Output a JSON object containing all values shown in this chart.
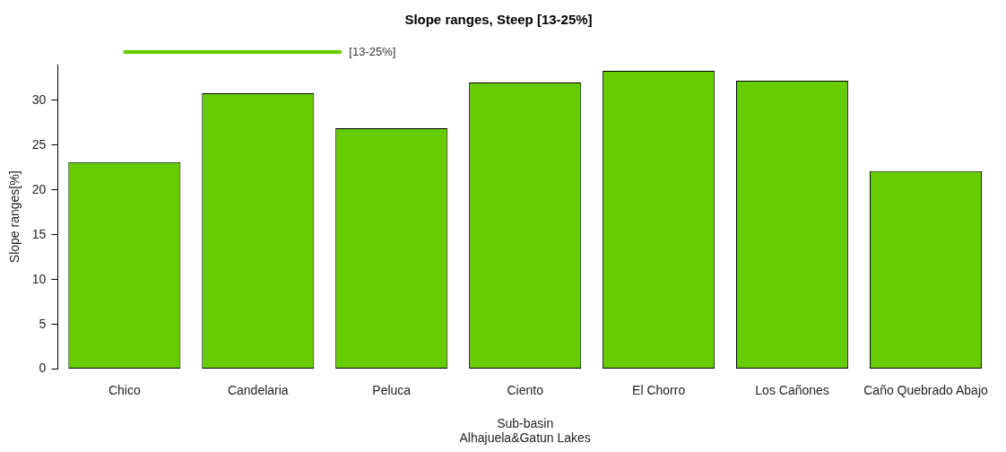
{
  "chart_data": {
    "type": "bar",
    "title": "Slope ranges, Steep [13-25%]",
    "xlabel": "Sub-basin\nAlhajuela&Gatun Lakes",
    "ylabel": "Slope ranges[%]",
    "categories": [
      "Chico",
      "Candelaria",
      "Peluca",
      "Ciento",
      "El Chorro",
      "Los Cañones",
      "Caño Quebrado Abajo"
    ],
    "series": [
      {
        "name": "[13-25%]",
        "color": "#66cc00",
        "values": [
          23.1,
          30.8,
          26.9,
          32.0,
          33.3,
          32.2,
          22.1
        ]
      }
    ],
    "ylim": [
      0,
      34
    ],
    "yticks": [
      0,
      5,
      10,
      15,
      20,
      25,
      30
    ],
    "grid": false,
    "legend": "top left"
  }
}
